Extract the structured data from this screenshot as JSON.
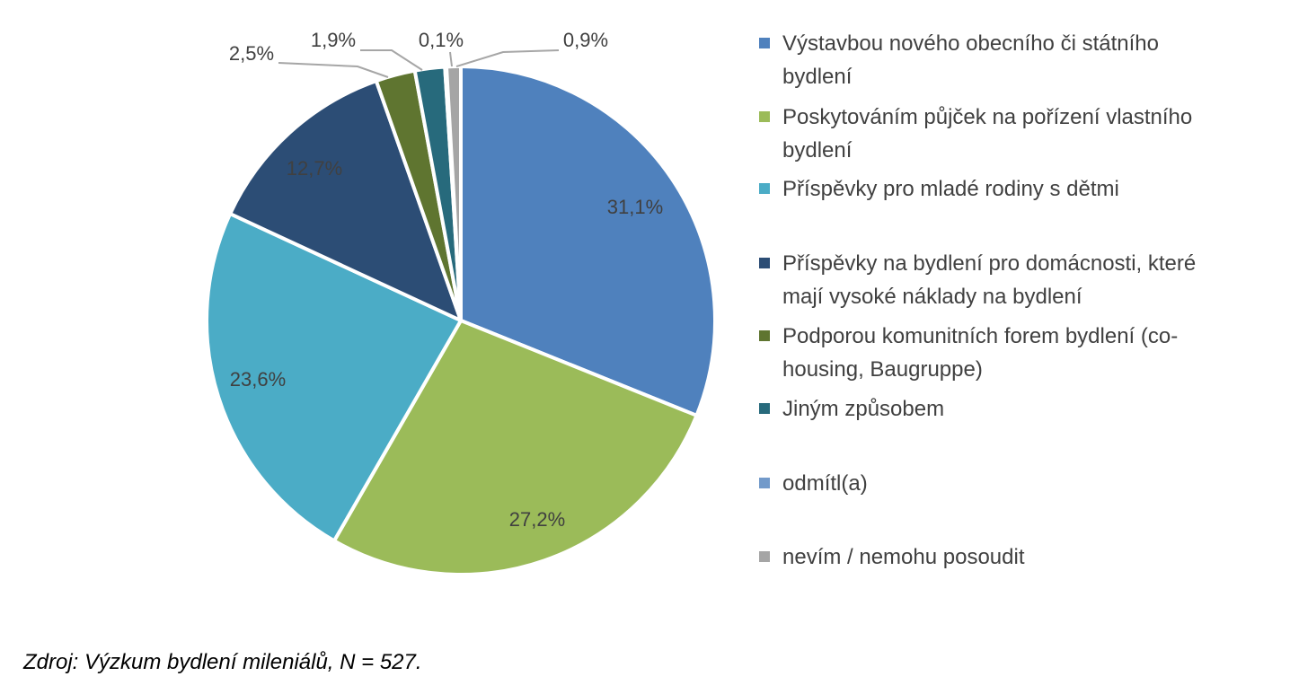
{
  "chart_data": {
    "type": "pie",
    "title": "",
    "slices": [
      {
        "label": "Výstavbou nového obecního či státního bydlení",
        "value": 31.1,
        "display": "31,1%",
        "color": "#4F81BD"
      },
      {
        "label": "Poskytováním půjček na pořízení vlastního bydlení",
        "value": 27.2,
        "display": "27,2%",
        "color": "#9BBB59"
      },
      {
        "label": "Příspěvky pro mladé rodiny s dětmi",
        "value": 23.6,
        "display": "23,6%",
        "color": "#4BACC6"
      },
      {
        "label": "Příspěvky na bydlení pro domácnosti, které mají vysoké náklady na bydlení",
        "value": 12.7,
        "display": "12,7%",
        "color": "#2C4D75"
      },
      {
        "label": "Podporou komunitních forem bydlení (co-housing, Baugruppe)",
        "value": 2.5,
        "display": "2,5%",
        "color": "#5F7530"
      },
      {
        "label": "Jiným způsobem",
        "value": 1.9,
        "display": "1,9%",
        "color": "#276A7C"
      },
      {
        "label": "odmítl(a)",
        "value": 0.1,
        "display": "0,1%",
        "color": "#729ACA"
      },
      {
        "label": "nevím / nemohu posoudit",
        "value": 0.9,
        "display": "0,9%",
        "color": "#A5A5A5"
      }
    ],
    "legend_position": "right"
  },
  "legend": {
    "items": [
      {
        "line1": "Výstavbou nového obecního či státního",
        "line2": "bydlení"
      },
      {
        "line1": "Poskytováním půjček na pořízení vlastního",
        "line2": "bydlení"
      },
      {
        "line1": "Příspěvky pro mladé rodiny s dětmi",
        "line2": ""
      },
      {
        "line1": "Příspěvky na bydlení pro domácnosti, které",
        "line2": "mají vysoké náklady na bydlení"
      },
      {
        "line1": "Podporou komunitních forem bydlení (co-",
        "line2": "housing, Baugruppe)"
      },
      {
        "line1": "Jiným způsobem",
        "line2": ""
      },
      {
        "line1": "odmítl(a)",
        "line2": ""
      },
      {
        "line1": "nevím / nemohu posoudit",
        "line2": ""
      }
    ]
  },
  "source_note": "Zdroj: Výzkum bydlení mileniálů, N = 527."
}
